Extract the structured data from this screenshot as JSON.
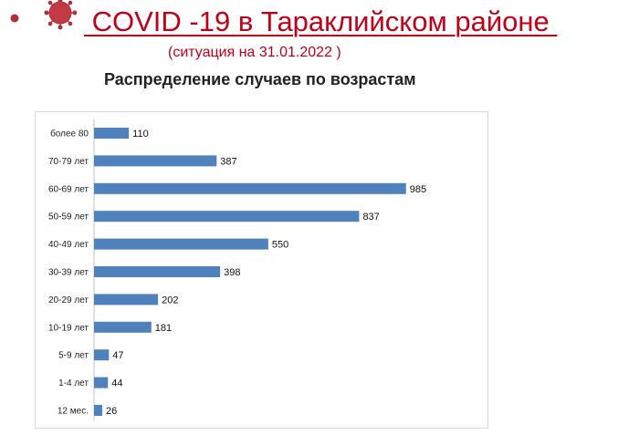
{
  "header": {
    "title": " COVID -19 в Тараклийском районе ",
    "subtitle": "(ситуация на 31.01.2022 )",
    "logo_icon": "coronavirus-icon"
  },
  "colors": {
    "title": "#c0001a",
    "bar": "#4f81bd"
  },
  "chart_data": {
    "type": "bar",
    "orientation": "horizontal",
    "title": "Распределение случаев по возрастам",
    "categories": [
      "более 80",
      "70-79 лет",
      "60-69 лет",
      "50-59 лет",
      "40-49 лет",
      "30-39 лет",
      "20-29 лет",
      "10-19 лет",
      "5-9 лет",
      "1-4 лет",
      "12 мес."
    ],
    "values": [
      110,
      387,
      985,
      837,
      550,
      398,
      202,
      181,
      47,
      44,
      26
    ],
    "xlim": [
      0,
      1000
    ],
    "grid": false,
    "legend": "none",
    "data_labels": true
  }
}
